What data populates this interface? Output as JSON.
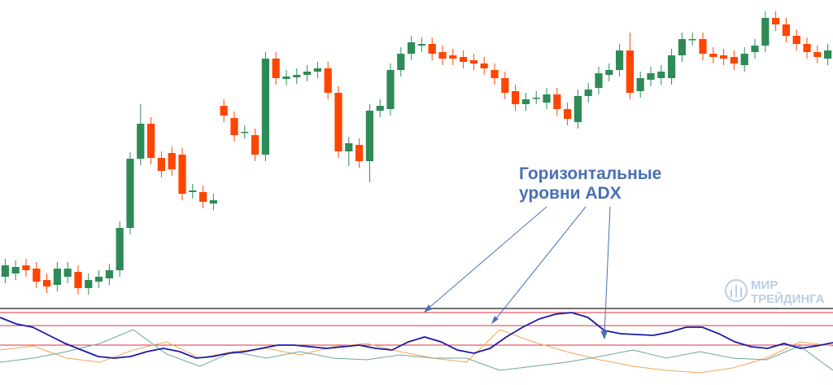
{
  "annotation": {
    "lines": [
      "Горизонтальные",
      "уровни ADX"
    ]
  },
  "logo": {
    "line1": "МИР",
    "line2": "ТРЕЙДИНГА"
  },
  "chart_data": [
    {
      "type": "candlestick",
      "ylim": [
        0,
        380
      ],
      "up_color": "#2e8b57",
      "down_color": "#ff4500",
      "open": [
        40,
        44,
        54,
        50,
        36,
        30,
        40,
        46,
        26,
        34,
        38,
        48,
        100,
        185,
        228,
        186,
        192,
        190,
        144,
        144,
        130,
        250,
        235,
        218,
        214,
        190,
        308,
        283,
        285,
        288,
        292,
        296,
        266,
        194,
        202,
        182,
        244,
        246,
        294,
        314,
        324,
        326,
        316,
        312,
        310,
        306,
        302,
        294,
        284,
        268,
        252,
        260,
        254,
        264,
        246,
        230,
        262,
        272,
        288,
        294,
        318,
        268,
        282,
        284,
        284,
        312,
        332,
        332,
        314,
        312,
        310,
        300,
        316,
        324,
        358,
        350,
        336,
        326,
        316,
        308
      ],
      "close": [
        54,
        52,
        48,
        34,
        28,
        50,
        50,
        26,
        36,
        40,
        48,
        100,
        185,
        228,
        186,
        170,
        172,
        142,
        146,
        132,
        134,
        238,
        214,
        218,
        190,
        308,
        284,
        286,
        288,
        292,
        296,
        266,
        194,
        204,
        182,
        244,
        250,
        294,
        314,
        328,
        326,
        314,
        308,
        308,
        304,
        302,
        296,
        284,
        266,
        252,
        258,
        260,
        264,
        246,
        234,
        262,
        270,
        290,
        294,
        318,
        266,
        284,
        290,
        292,
        312,
        332,
        332,
        314,
        310,
        308,
        302,
        314,
        324,
        358,
        350,
        336,
        326,
        316,
        310,
        318
      ],
      "high": [
        62,
        60,
        62,
        58,
        44,
        58,
        58,
        54,
        44,
        48,
        56,
        108,
        193,
        252,
        236,
        194,
        200,
        198,
        154,
        152,
        142,
        258,
        243,
        226,
        222,
        316,
        316,
        294,
        296,
        300,
        304,
        304,
        274,
        212,
        210,
        252,
        258,
        302,
        322,
        336,
        334,
        334,
        324,
        320,
        318,
        314,
        310,
        302,
        292,
        276,
        266,
        268,
        272,
        272,
        254,
        270,
        278,
        298,
        302,
        326,
        340,
        292,
        298,
        300,
        320,
        340,
        340,
        340,
        322,
        320,
        318,
        322,
        332,
        366,
        366,
        358,
        344,
        334,
        324,
        326
      ],
      "low": [
        32,
        36,
        40,
        26,
        20,
        22,
        32,
        18,
        18,
        26,
        30,
        40,
        92,
        177,
        178,
        162,
        164,
        134,
        136,
        124,
        122,
        230,
        206,
        210,
        182,
        182,
        276,
        275,
        277,
        280,
        284,
        258,
        186,
        176,
        174,
        156,
        236,
        238,
        286,
        306,
        316,
        306,
        300,
        300,
        296,
        294,
        288,
        276,
        258,
        244,
        244,
        252,
        246,
        238,
        226,
        222,
        254,
        264,
        280,
        286,
        258,
        260,
        274,
        276,
        276,
        304,
        324,
        306,
        302,
        300,
        294,
        292,
        308,
        316,
        342,
        328,
        318,
        308,
        302,
        300
      ]
    },
    {
      "type": "line",
      "ylim": [
        0,
        93
      ],
      "levels": [
        89,
        73,
        49
      ],
      "level_color": "#e0313a",
      "series": [
        {
          "color": "#f5a55a",
          "values": [
            43,
            48,
            33,
            28,
            43,
            53,
            33,
            41,
            45,
            37,
            47,
            51,
            41,
            33,
            28,
            68,
            53,
            41,
            31,
            23,
            18,
            15,
            21,
            33,
            53,
            48
          ]
        },
        {
          "color": "#6aa89a",
          "values": [
            28,
            33,
            41,
            51,
            68,
            38,
            23,
            41,
            33,
            41,
            33,
            31,
            37,
            33,
            33,
            18,
            23,
            28,
            35,
            43,
            33,
            41,
            33,
            31,
            48,
            18
          ]
        },
        {
          "color": "#1a1aa8",
          "values": [
            83,
            75,
            71,
            61,
            51,
            43,
            35,
            33,
            35,
            41,
            45,
            41,
            33,
            35,
            39,
            41,
            45,
            49,
            49,
            47,
            45,
            47,
            49,
            45,
            43,
            53,
            59,
            53,
            43,
            39,
            45,
            59,
            71,
            81,
            87,
            89,
            83,
            67,
            63,
            62,
            61,
            65,
            71,
            71,
            63,
            53,
            47,
            45,
            51,
            45,
            48,
            52
          ]
        }
      ]
    }
  ]
}
